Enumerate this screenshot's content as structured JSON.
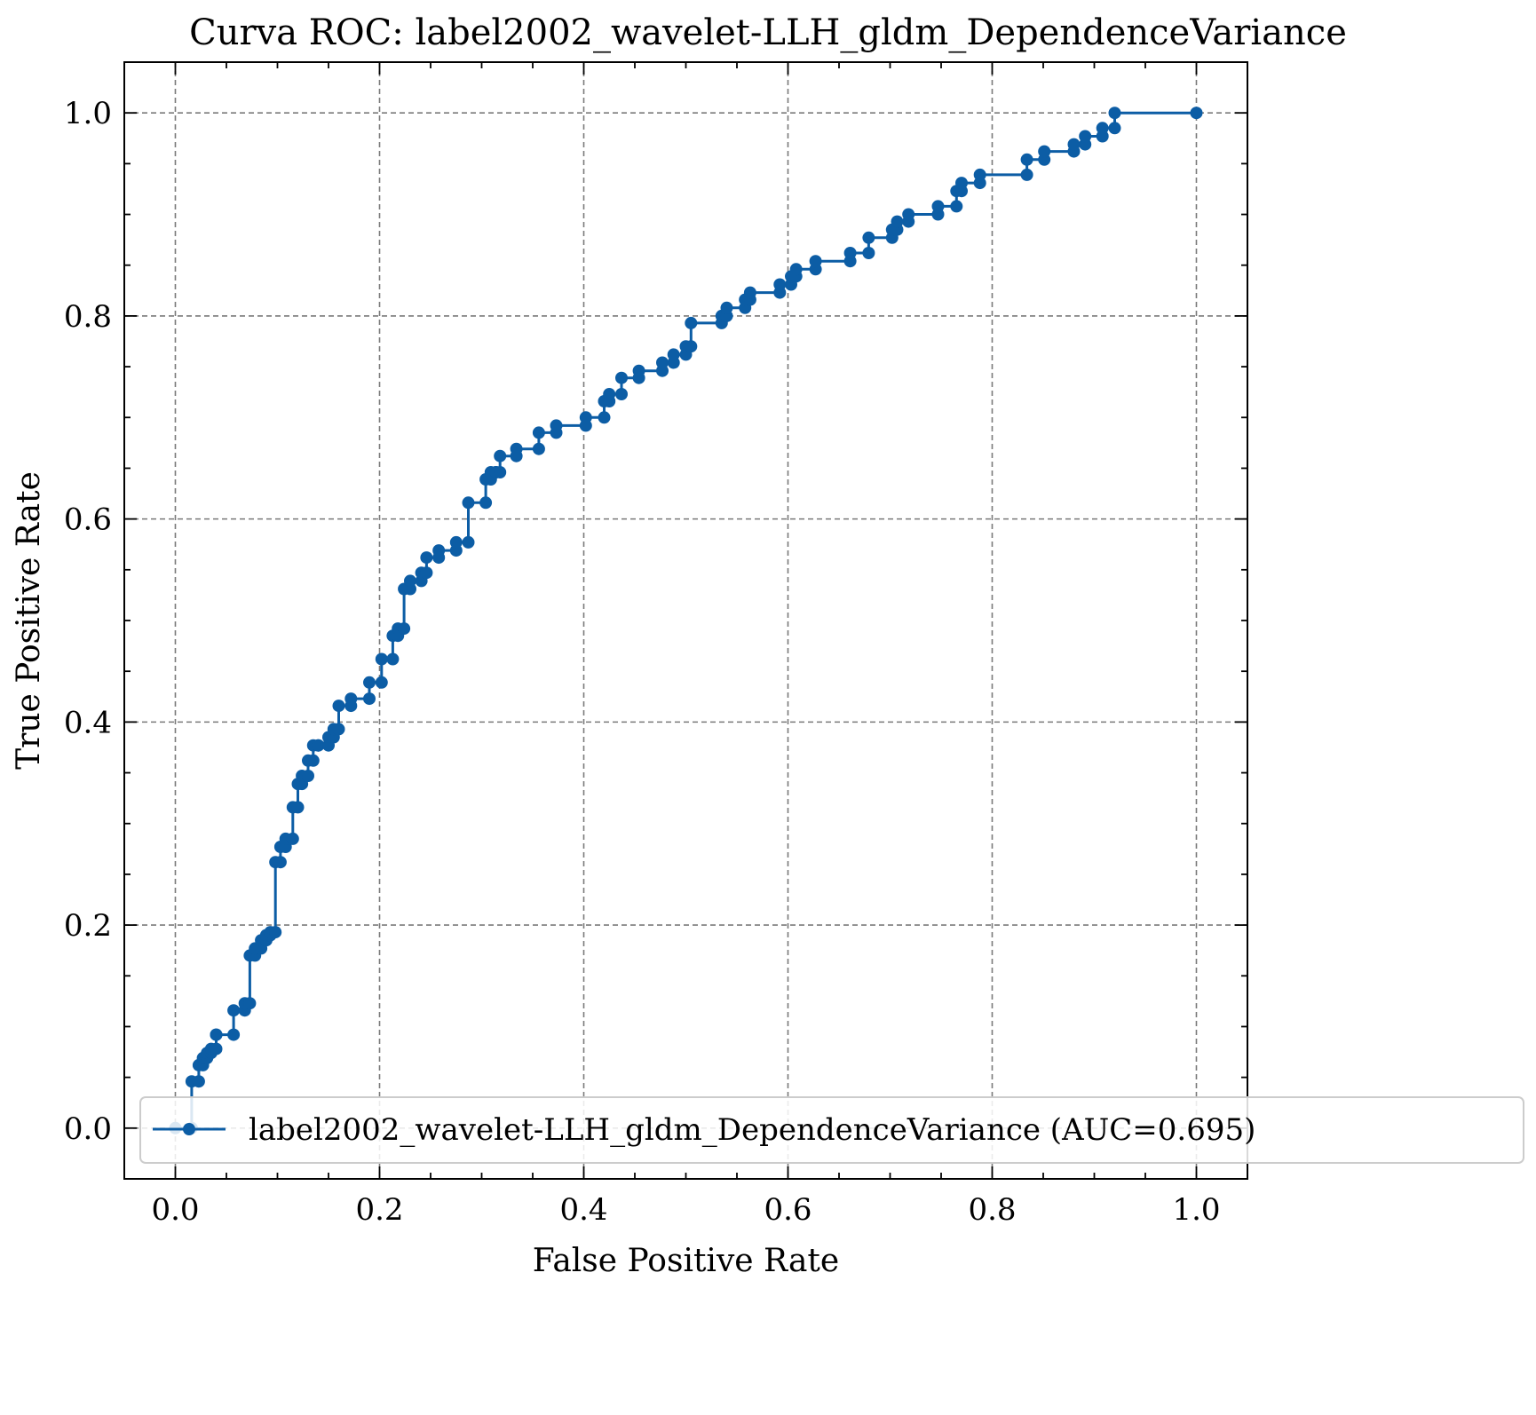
{
  "chart_data": {
    "type": "line",
    "title": "Curva ROC: label2002_wavelet-LLH_gldm_DependenceVariance",
    "xlabel": "False Positive Rate",
    "ylabel": "True Positive Rate",
    "xlim": [
      -0.05,
      1.05
    ],
    "ylim": [
      -0.05,
      1.05
    ],
    "xticks": [
      "0.0",
      "0.2",
      "0.4",
      "0.6",
      "0.8",
      "1.0"
    ],
    "yticks": [
      "0.0",
      "0.2",
      "0.4",
      "0.6",
      "0.8",
      "1.0"
    ],
    "grid": true,
    "legend_position": "lower-right",
    "color": "#0c5da5",
    "series": [
      {
        "name": "label2002_wavelet-LLH_gldm_DependenceVariance (AUC=0.695)",
        "x": [
          0.0,
          0.016,
          0.016,
          0.023,
          0.023,
          0.027,
          0.027,
          0.031,
          0.031,
          0.035,
          0.035,
          0.04,
          0.04,
          0.04,
          0.057,
          0.057,
          0.068,
          0.068,
          0.073,
          0.073,
          0.078,
          0.078,
          0.084,
          0.084,
          0.089,
          0.089,
          0.093,
          0.093,
          0.098,
          0.098,
          0.103,
          0.103,
          0.108,
          0.108,
          0.115,
          0.115,
          0.12,
          0.12,
          0.124,
          0.124,
          0.13,
          0.13,
          0.135,
          0.135,
          0.14,
          0.14,
          0.15,
          0.15,
          0.155,
          0.155,
          0.16,
          0.16,
          0.172,
          0.172,
          0.19,
          0.19,
          0.202,
          0.202,
          0.213,
          0.213,
          0.218,
          0.218,
          0.224,
          0.224,
          0.23,
          0.23,
          0.241,
          0.241,
          0.246,
          0.246,
          0.258,
          0.258,
          0.275,
          0.275,
          0.287,
          0.287,
          0.304,
          0.304,
          0.309,
          0.309,
          0.314,
          0.314,
          0.318,
          0.318,
          0.334,
          0.334,
          0.356,
          0.356,
          0.373,
          0.373,
          0.402,
          0.402,
          0.42,
          0.42,
          0.425,
          0.425,
          0.437,
          0.437,
          0.454,
          0.454,
          0.477,
          0.477,
          0.488,
          0.488,
          0.5,
          0.5,
          0.505,
          0.505,
          0.535,
          0.535,
          0.54,
          0.54,
          0.558,
          0.558,
          0.563,
          0.563,
          0.592,
          0.592,
          0.603,
          0.603,
          0.608,
          0.608,
          0.627,
          0.627,
          0.661,
          0.661,
          0.679,
          0.679,
          0.702,
          0.702,
          0.707,
          0.707,
          0.718,
          0.718,
          0.747,
          0.747,
          0.765,
          0.765,
          0.77,
          0.77,
          0.788,
          0.788,
          0.834,
          0.834,
          0.851,
          0.851,
          0.88,
          0.88,
          0.891,
          0.891,
          0.908,
          0.908,
          0.92,
          0.92,
          1.0
        ],
        "y": [
          0.0,
          0.0,
          0.046,
          0.046,
          0.062,
          0.062,
          0.069,
          0.069,
          0.074,
          0.074,
          0.078,
          0.078,
          0.092,
          0.092,
          0.092,
          0.116,
          0.116,
          0.123,
          0.123,
          0.17,
          0.17,
          0.177,
          0.177,
          0.185,
          0.185,
          0.19,
          0.19,
          0.193,
          0.193,
          0.262,
          0.262,
          0.277,
          0.277,
          0.285,
          0.285,
          0.316,
          0.316,
          0.339,
          0.339,
          0.347,
          0.347,
          0.362,
          0.362,
          0.377,
          0.377,
          0.377,
          0.377,
          0.385,
          0.385,
          0.393,
          0.393,
          0.416,
          0.416,
          0.423,
          0.423,
          0.439,
          0.439,
          0.462,
          0.462,
          0.485,
          0.485,
          0.492,
          0.492,
          0.531,
          0.531,
          0.539,
          0.539,
          0.547,
          0.547,
          0.562,
          0.562,
          0.569,
          0.569,
          0.577,
          0.577,
          0.616,
          0.616,
          0.639,
          0.639,
          0.646,
          0.646,
          0.646,
          0.646,
          0.662,
          0.662,
          0.669,
          0.669,
          0.685,
          0.685,
          0.692,
          0.692,
          0.7,
          0.7,
          0.716,
          0.716,
          0.723,
          0.723,
          0.739,
          0.739,
          0.746,
          0.746,
          0.754,
          0.754,
          0.762,
          0.762,
          0.77,
          0.77,
          0.793,
          0.793,
          0.8,
          0.8,
          0.808,
          0.808,
          0.816,
          0.816,
          0.823,
          0.823,
          0.831,
          0.831,
          0.839,
          0.839,
          0.846,
          0.846,
          0.854,
          0.854,
          0.862,
          0.862,
          0.877,
          0.877,
          0.885,
          0.885,
          0.893,
          0.893,
          0.9,
          0.9,
          0.908,
          0.908,
          0.923,
          0.923,
          0.931,
          0.931,
          0.939,
          0.939,
          0.954,
          0.954,
          0.962,
          0.962,
          0.969,
          0.969,
          0.977,
          0.977,
          0.985,
          0.985,
          1.0,
          1.0
        ]
      }
    ]
  }
}
